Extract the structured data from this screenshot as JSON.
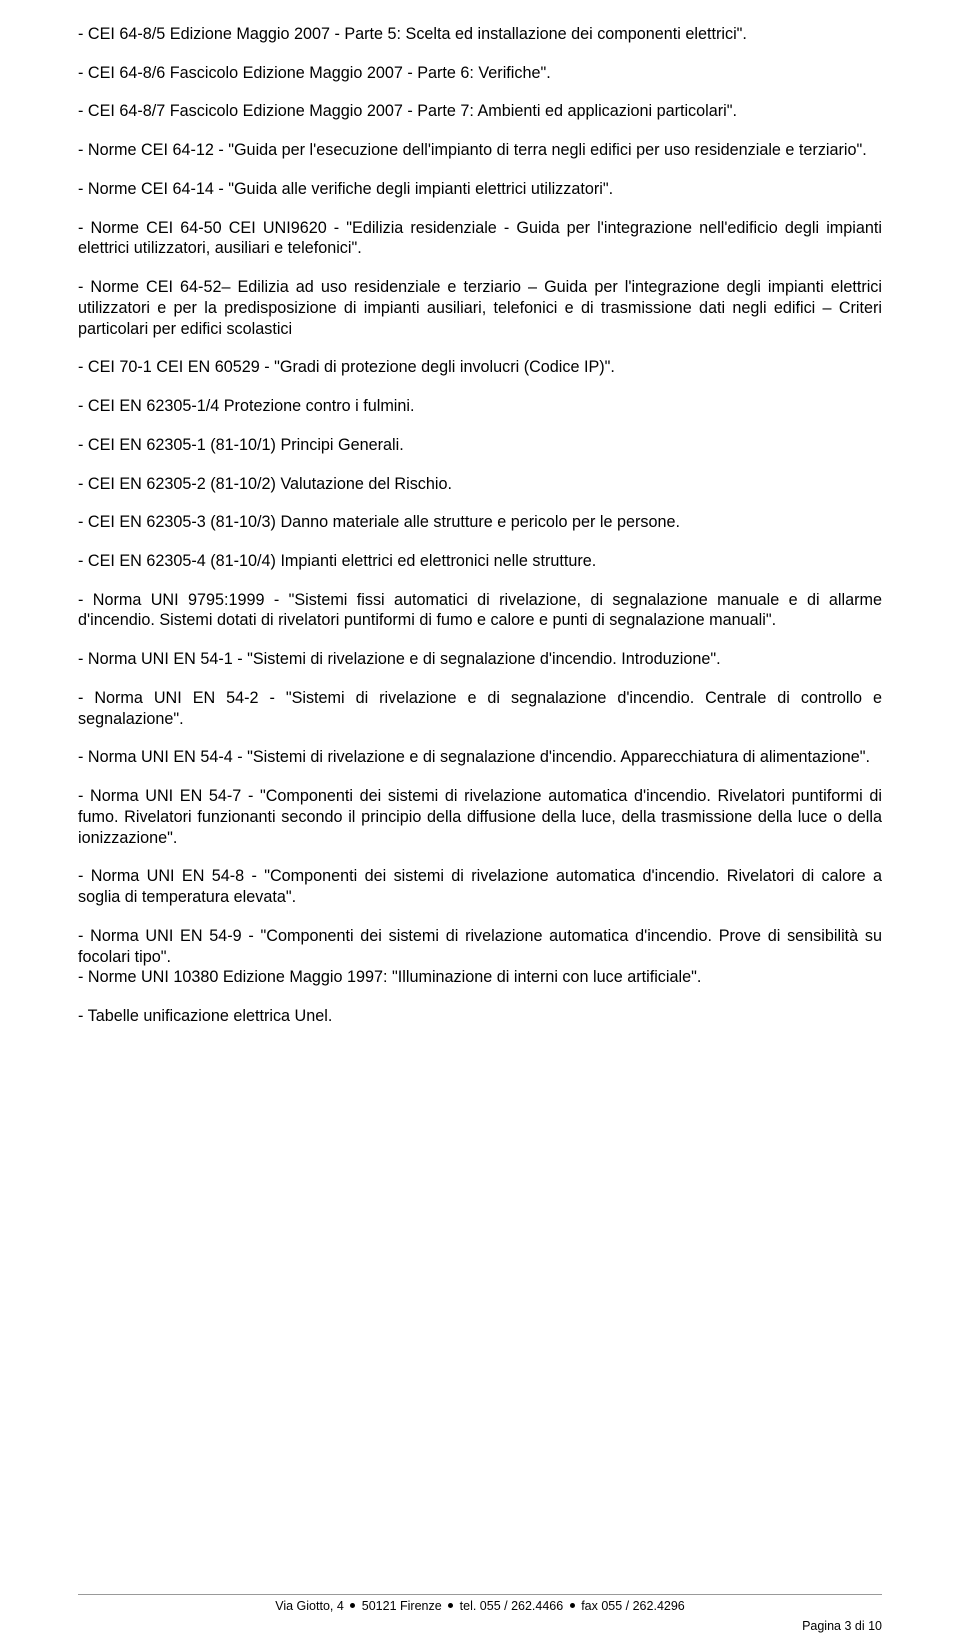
{
  "paragraphs": [
    "-       CEI 64-8/5 Edizione Maggio 2007 - Parte 5: Scelta ed installazione dei componenti elettrici\".",
    "-       CEI 64-8/6 Fascicolo Edizione Maggio 2007 - Parte 6: Verifiche\".",
    "-       CEI 64-8/7 Fascicolo Edizione Maggio 2007 - Parte 7: Ambienti ed applicazioni particolari\".",
    "-       Norme CEI 64-12 - \"Guida per l'esecuzione dell'impianto di terra negli edifici per uso residenziale e terziario\".",
    "-       Norme CEI 64-14 - \"Guida alle verifiche degli impianti elettrici utilizzatori\".",
    "-       Norme CEI 64-50 CEI UNI9620 - \"Edilizia residenziale - Guida per l'integrazione nell'edificio degli impianti elettrici utilizzatori, ausiliari e telefonici\".",
    "-       Norme CEI 64-52– Edilizia ad uso residenziale e terziario – Guida per l'integrazione degli impianti elettrici utilizzatori e per la predisposizione di impianti ausiliari, telefonici e di trasmissione dati negli edifici – Criteri particolari per edifici scolastici",
    "-       CEI 70-1 CEI EN 60529 - \"Gradi di protezione degli involucri (Codice IP)\".",
    "-       CEI EN 62305-1/4 Protezione contro i fulmini.",
    "-       CEI EN 62305-1 (81-10/1) Principi Generali.",
    "-       CEI EN 62305-2 (81-10/2) Valutazione del Rischio.",
    "-       CEI EN 62305-3 (81-10/3) Danno materiale alle strutture e pericolo per le persone.",
    "-       CEI EN 62305-4 (81-10/4) Impianti elettrici ed elettronici nelle strutture.",
    "-       Norma UNI 9795:1999 - \"Sistemi fissi automatici di rivelazione, di segnalazione manuale e di allarme d'incendio. Sistemi dotati di rivelatori puntiformi di fumo e calore e punti di segnalazione manuali\".",
    "-       Norma UNI EN 54-1 - \"Sistemi di rivelazione e di segnalazione d'incendio. Introduzione\".",
    "-       Norma UNI EN 54-2 - \"Sistemi di rivelazione e di segnalazione d'incendio. Centrale di controllo e segnalazione\".",
    "-       Norma UNI EN 54-4 - \"Sistemi di rivelazione e di segnalazione d'incendio. Apparecchiatura di alimentazione\".",
    "-       Norma UNI EN 54-7 - \"Componenti dei sistemi di rivelazione automatica d'incendio. Rivelatori puntiformi di fumo. Rivelatori funzionanti secondo il principio della diffusione della luce, della trasmissione della luce o della ionizzazione\".",
    "-       Norma UNI EN 54-8 - \"Componenti dei sistemi di rivelazione automatica d'incendio. Rivelatori di calore a soglia di temperatura elevata\".",
    "-       Norma UNI EN 54-9 - \"Componenti dei sistemi di rivelazione automatica d'incendio. Prove di sensibilità su focolari tipo\".\n-       Norme UNI 10380 Edizione Maggio 1997: \"Illuminazione di interni con luce artificiale\".",
    "-       Tabelle unificazione elettrica Unel."
  ],
  "footer": {
    "address_parts": [
      "Via Giotto, 4",
      "50121 Firenze",
      "tel.  055 / 262.4466",
      "fax 055 / 262.4296"
    ],
    "page_label": "Pagina 3 di 10"
  }
}
